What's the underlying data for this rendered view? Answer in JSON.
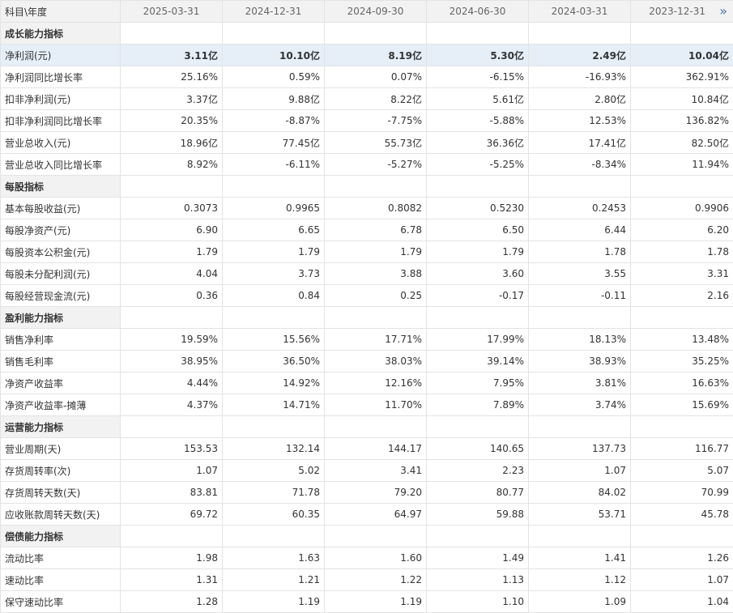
{
  "header": {
    "first": "科目\\年度",
    "dates": [
      "2025-03-31",
      "2024-12-31",
      "2024-09-30",
      "2024-06-30",
      "2024-03-31",
      "2023-12-31"
    ],
    "more_glyph": "»"
  },
  "rows": [
    {
      "type": "section",
      "label": "成长能力指标"
    },
    {
      "type": "data",
      "highlight": true,
      "label": "净利润(元)",
      "values": [
        "3.11亿",
        "10.10亿",
        "8.19亿",
        "5.30亿",
        "2.49亿",
        "10.04亿"
      ]
    },
    {
      "type": "data",
      "label": "净利润同比增长率",
      "values": [
        "25.16%",
        "0.59%",
        "0.07%",
        "-6.15%",
        "-16.93%",
        "362.91%"
      ]
    },
    {
      "type": "data",
      "label": "扣非净利润(元)",
      "values": [
        "3.37亿",
        "9.88亿",
        "8.22亿",
        "5.61亿",
        "2.80亿",
        "10.84亿"
      ]
    },
    {
      "type": "data",
      "label": "扣非净利润同比增长率",
      "values": [
        "20.35%",
        "-8.87%",
        "-7.75%",
        "-5.88%",
        "12.53%",
        "136.82%"
      ]
    },
    {
      "type": "data",
      "label": "营业总收入(元)",
      "values": [
        "18.96亿",
        "77.45亿",
        "55.73亿",
        "36.36亿",
        "17.41亿",
        "82.50亿"
      ]
    },
    {
      "type": "data",
      "label": "营业总收入同比增长率",
      "values": [
        "8.92%",
        "-6.11%",
        "-5.27%",
        "-5.25%",
        "-8.34%",
        "11.94%"
      ]
    },
    {
      "type": "section",
      "label": "每股指标"
    },
    {
      "type": "data",
      "label": "基本每股收益(元)",
      "values": [
        "0.3073",
        "0.9965",
        "0.8082",
        "0.5230",
        "0.2453",
        "0.9906"
      ]
    },
    {
      "type": "data",
      "label": "每股净资产(元)",
      "values": [
        "6.90",
        "6.65",
        "6.78",
        "6.50",
        "6.44",
        "6.20"
      ]
    },
    {
      "type": "data",
      "label": "每股资本公积金(元)",
      "values": [
        "1.79",
        "1.79",
        "1.79",
        "1.79",
        "1.78",
        "1.78"
      ]
    },
    {
      "type": "data",
      "label": "每股未分配利润(元)",
      "values": [
        "4.04",
        "3.73",
        "3.88",
        "3.60",
        "3.55",
        "3.31"
      ]
    },
    {
      "type": "data",
      "label": "每股经营现金流(元)",
      "values": [
        "0.36",
        "0.84",
        "0.25",
        "-0.17",
        "-0.11",
        "2.16"
      ]
    },
    {
      "type": "section",
      "label": "盈利能力指标"
    },
    {
      "type": "data",
      "label": "销售净利率",
      "values": [
        "19.59%",
        "15.56%",
        "17.71%",
        "17.99%",
        "18.13%",
        "13.48%"
      ]
    },
    {
      "type": "data",
      "label": "销售毛利率",
      "values": [
        "38.95%",
        "36.50%",
        "38.03%",
        "39.14%",
        "38.93%",
        "35.25%"
      ]
    },
    {
      "type": "data",
      "label": "净资产收益率",
      "values": [
        "4.44%",
        "14.92%",
        "12.16%",
        "7.95%",
        "3.81%",
        "16.63%"
      ]
    },
    {
      "type": "data",
      "label": "净资产收益率-摊薄",
      "values": [
        "4.37%",
        "14.71%",
        "11.70%",
        "7.89%",
        "3.74%",
        "15.69%"
      ]
    },
    {
      "type": "section",
      "label": "运营能力指标"
    },
    {
      "type": "data",
      "label": "营业周期(天)",
      "values": [
        "153.53",
        "132.14",
        "144.17",
        "140.65",
        "137.73",
        "116.77"
      ]
    },
    {
      "type": "data",
      "label": "存货周转率(次)",
      "values": [
        "1.07",
        "5.02",
        "3.41",
        "2.23",
        "1.07",
        "5.07"
      ]
    },
    {
      "type": "data",
      "label": "存货周转天数(天)",
      "values": [
        "83.81",
        "71.78",
        "79.20",
        "80.77",
        "84.02",
        "70.99"
      ]
    },
    {
      "type": "data",
      "label": "应收账款周转天数(天)",
      "values": [
        "69.72",
        "60.35",
        "64.97",
        "59.88",
        "53.71",
        "45.78"
      ]
    },
    {
      "type": "section",
      "label": "偿债能力指标"
    },
    {
      "type": "data",
      "label": "流动比率",
      "values": [
        "1.98",
        "1.63",
        "1.60",
        "1.49",
        "1.41",
        "1.26"
      ]
    },
    {
      "type": "data",
      "label": "速动比率",
      "values": [
        "1.31",
        "1.21",
        "1.22",
        "1.13",
        "1.12",
        "1.07"
      ]
    },
    {
      "type": "data",
      "label": "保守速动比率",
      "values": [
        "1.28",
        "1.19",
        "1.19",
        "1.10",
        "1.09",
        "1.04"
      ]
    }
  ]
}
